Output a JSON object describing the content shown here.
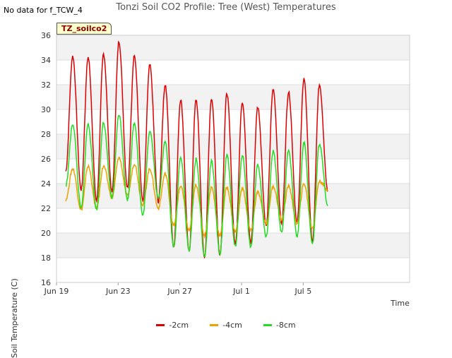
{
  "header": {
    "title": "Tonzi Soil CO2 Profile: Tree (West) Temperatures",
    "no_data": "No data for f_TCW_4",
    "tag": "TZ_soilco2"
  },
  "chart_data": {
    "type": "line",
    "title": "Tonzi Soil CO2 Profile: Tree (West) Temperatures",
    "xlabel": "Time",
    "ylabel": "Soil Temperature (C)",
    "ylim": [
      16,
      36
    ],
    "yticks": [
      16,
      18,
      20,
      22,
      24,
      26,
      28,
      30,
      32,
      34,
      36
    ],
    "xlim": [
      0,
      22.9
    ],
    "xticks": [
      {
        "label": "Jun 19",
        "day": 0
      },
      {
        "label": "Jun 23",
        "day": 4
      },
      {
        "label": "Jun 27",
        "day": 8
      },
      {
        "label": "Jul 1",
        "day": 12
      },
      {
        "label": "Jul 5",
        "day": 16
      }
    ],
    "grid": "horizontal bands",
    "legend": "bottom",
    "series": [
      {
        "name": "-2cm",
        "color": "#dd0000",
        "peaks": [
          34.3,
          34.2,
          34.5,
          35.5,
          34.3,
          33.6,
          32.0,
          30.8,
          30.8,
          30.9,
          31.3,
          30.6,
          30.2,
          31.6,
          31.4,
          32.5,
          32.0
        ],
        "troughs": [
          25.0,
          23.5,
          22.6,
          23.3,
          23.7,
          22.6,
          22.5,
          18.9,
          18.5,
          18.0,
          18.2,
          19.1,
          19.2,
          20.6,
          20.8,
          20.8,
          19.3,
          23.4
        ]
      },
      {
        "name": "-4cm",
        "color": "#f0a000",
        "peaks": [
          25.2,
          25.4,
          25.4,
          26.1,
          25.6,
          25.2,
          24.8,
          23.8,
          23.9,
          23.7,
          23.7,
          23.6,
          23.3,
          23.8,
          23.8,
          24.0,
          24.2
        ],
        "troughs": [
          22.7,
          21.9,
          22.0,
          22.9,
          23.0,
          22.3,
          22.0,
          20.6,
          20.2,
          19.8,
          19.8,
          20.1,
          20.2,
          20.8,
          21.1,
          20.8,
          20.4,
          23.5
        ]
      },
      {
        "name": "-8cm",
        "color": "#22dd22",
        "peaks": [
          28.8,
          28.8,
          28.9,
          29.6,
          28.9,
          28.3,
          27.4,
          26.1,
          26.0,
          25.8,
          26.3,
          26.3,
          25.5,
          26.6,
          26.7,
          27.3,
          27.2
        ],
        "troughs": [
          23.8,
          22.0,
          21.9,
          22.8,
          22.7,
          21.4,
          22.8,
          18.9,
          18.6,
          18.1,
          18.3,
          18.9,
          18.9,
          19.7,
          20.0,
          19.7,
          19.1,
          22.2
        ]
      }
    ]
  }
}
